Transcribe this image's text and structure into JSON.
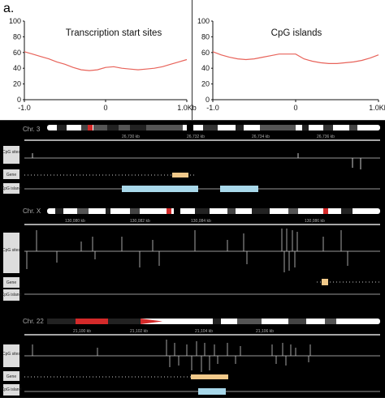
{
  "figure_label": "a.",
  "chart_data": [
    {
      "type": "line",
      "title": "Transcription start sites",
      "xlabel": "",
      "ylabel": "",
      "xlim": [
        -1.0,
        1.0
      ],
      "ylim": [
        0,
        100
      ],
      "x_tick_labels": [
        "-1.0",
        "0",
        "1.0Kb"
      ],
      "y_tick_labels": [
        "0",
        "20",
        "40",
        "60",
        "80",
        "100"
      ],
      "series": [
        {
          "color": "#e8635a",
          "x": [
            -1.0,
            -0.9,
            -0.8,
            -0.7,
            -0.6,
            -0.5,
            -0.4,
            -0.3,
            -0.2,
            -0.1,
            0.0,
            0.1,
            0.2,
            0.3,
            0.4,
            0.5,
            0.6,
            0.7,
            0.8,
            0.9,
            1.0
          ],
          "y": [
            61,
            58,
            55,
            52,
            48,
            45,
            41,
            38,
            37,
            38,
            41,
            42,
            40,
            39,
            38,
            39,
            40,
            42,
            45,
            48,
            51
          ]
        }
      ]
    },
    {
      "type": "line",
      "title": "CpG islands",
      "xlabel": "",
      "ylabel": "",
      "xlim": [
        -1.0,
        1.0
      ],
      "ylim": [
        0,
        100
      ],
      "x_tick_labels": [
        "-1.0",
        "0",
        "1.0Kb"
      ],
      "y_tick_labels": [
        "0",
        "20",
        "40",
        "60",
        "80",
        "100"
      ],
      "series": [
        {
          "color": "#e8635a",
          "x": [
            -1.0,
            -0.9,
            -0.8,
            -0.7,
            -0.6,
            -0.5,
            -0.4,
            -0.3,
            -0.2,
            -0.1,
            0.0,
            0.1,
            0.2,
            0.3,
            0.4,
            0.5,
            0.6,
            0.7,
            0.8,
            0.9,
            1.0
          ],
          "y": [
            61,
            57,
            54,
            52,
            51,
            52,
            54,
            56,
            58,
            58,
            58,
            52,
            49,
            47,
            46,
            46,
            47,
            48,
            50,
            53,
            57
          ]
        }
      ]
    }
  ],
  "browser": {
    "colors": {
      "cpg_track": "#ffffff",
      "gene": "#f1c98a",
      "island": "#a8d8ea",
      "highlight": "#d42a2a"
    },
    "panels": [
      {
        "chrom_label": "Chr. 3",
        "ruler_labels": [
          "26,730 kb",
          "26,732 kb",
          "26,734 kb",
          "26,736 kb"
        ],
        "track_labels": {
          "cpg": "CpG sites",
          "gene": "Gene",
          "island": "CpG island"
        }
      },
      {
        "chrom_label": "Chr. X",
        "ruler_labels": [
          "130,080 kb",
          "130,082 kb",
          "130,084 kb",
          "130,086 kb"
        ],
        "track_labels": {
          "cpg": "CpG sites",
          "gene": "Gene",
          "island": "CpG island"
        }
      },
      {
        "chrom_label": "Chr. 22",
        "ruler_labels": [
          "21,100 kb",
          "21,102 kb",
          "21,104 kb",
          "21,106 kb"
        ],
        "track_labels": {
          "cpg": "CpG sites",
          "gene": "Gene",
          "island": "CpG island"
        }
      }
    ]
  }
}
